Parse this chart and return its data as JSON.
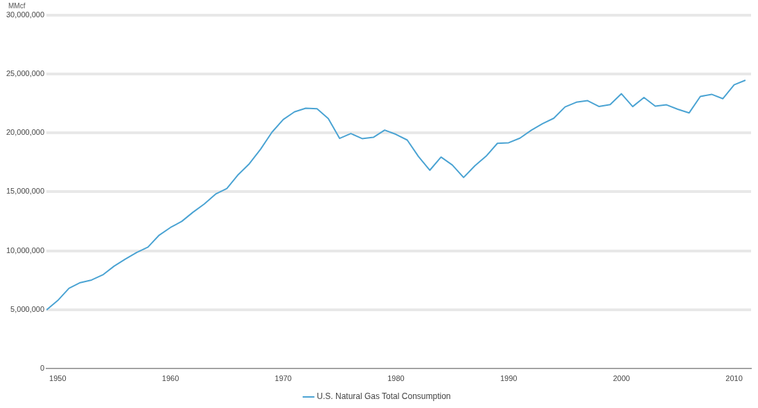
{
  "chart_data": {
    "type": "line",
    "ylabel": "MMcf",
    "x": [
      1949,
      1950,
      1951,
      1952,
      1953,
      1954,
      1955,
      1956,
      1957,
      1958,
      1959,
      1960,
      1961,
      1962,
      1963,
      1964,
      1965,
      1966,
      1967,
      1968,
      1969,
      1970,
      1971,
      1972,
      1973,
      1974,
      1975,
      1976,
      1977,
      1978,
      1979,
      1980,
      1981,
      1982,
      1983,
      1984,
      1985,
      1986,
      1987,
      1988,
      1989,
      1990,
      1991,
      1992,
      1993,
      1994,
      1995,
      1996,
      1997,
      1998,
      1999,
      2000,
      2001,
      2002,
      2003,
      2004,
      2005,
      2006,
      2007,
      2008,
      2009,
      2010,
      2011
    ],
    "series": [
      {
        "name": "U.S. Natural Gas Total Consumption",
        "color": "#4aa3d3",
        "values": [
          4970000,
          5770000,
          6810000,
          7290000,
          7510000,
          7950000,
          8690000,
          9290000,
          9850000,
          10300000,
          11320000,
          11970000,
          12490000,
          13270000,
          13970000,
          14810000,
          15280000,
          16450000,
          17390000,
          18630000,
          20060000,
          21140000,
          21790000,
          22100000,
          22050000,
          21220000,
          19540000,
          19950000,
          19520000,
          19630000,
          20240000,
          19880000,
          19400000,
          18000000,
          16830000,
          17950000,
          17280000,
          16220000,
          17210000,
          18030000,
          19120000,
          19170000,
          19560000,
          20230000,
          20790000,
          21250000,
          22210000,
          22610000,
          22740000,
          22250000,
          22410000,
          23330000,
          22240000,
          23010000,
          22280000,
          22390000,
          22010000,
          21700000,
          23100000,
          23280000,
          22910000,
          24090000,
          24480000
        ]
      }
    ],
    "xlim": [
      1949,
      2011.5
    ],
    "xticks": [
      1950,
      1960,
      1970,
      1980,
      1990,
      2000,
      2010
    ],
    "ylim": [
      0,
      30000000
    ],
    "yticks": [
      0,
      {
        "value": 5000000,
        "label": "5,000,000"
      },
      {
        "value": 10000000,
        "label": "10,000,000"
      },
      {
        "value": 15000000,
        "label": "15,000,000"
      },
      {
        "value": 20000000,
        "label": "20,000,000"
      },
      {
        "value": 25000000,
        "label": "25,000,000"
      },
      {
        "value": 30000000,
        "label": "30,000,000"
      }
    ],
    "grid": "y",
    "legend": "bottom",
    "marker": "none",
    "line_style": "solid"
  }
}
